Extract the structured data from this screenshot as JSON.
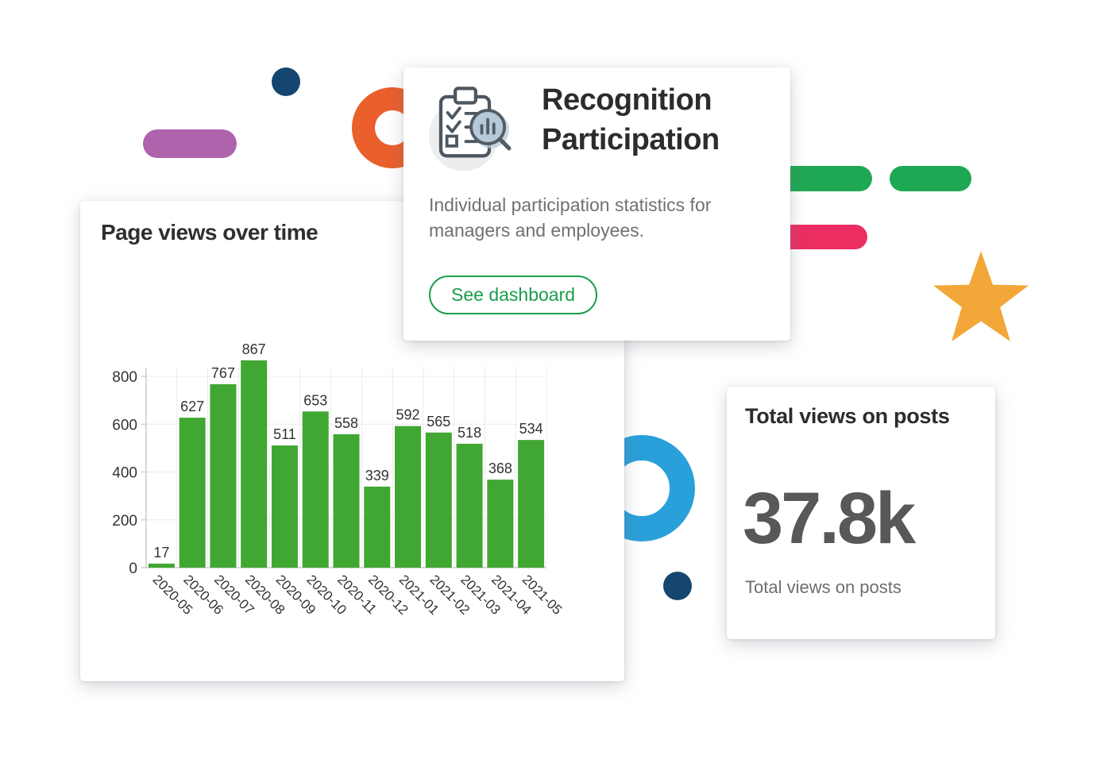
{
  "page": {
    "background": "#ffffff"
  },
  "chart_card": {
    "title": "Page views over time"
  },
  "chart_data": {
    "type": "bar",
    "title": "Page views over time",
    "categories": [
      "2020-05",
      "2020-06",
      "2020-07",
      "2020-08",
      "2020-09",
      "2020-10",
      "2020-11",
      "2020-12",
      "2021-01",
      "2021-02",
      "2021-03",
      "2021-04",
      "2021-05"
    ],
    "values": [
      17,
      627,
      767,
      867,
      511,
      653,
      558,
      339,
      592,
      565,
      518,
      368,
      534
    ],
    "xlabel": "",
    "ylabel": "",
    "ylim": [
      0,
      900
    ],
    "yticks": [
      0,
      200,
      400,
      600,
      800
    ],
    "x_tick_rotation": 45,
    "grid": true,
    "value_labels": true,
    "legend": "none",
    "bar_color": "#41A733",
    "grid_color": "#ececec",
    "axis_color": "#cccccc",
    "text_color": "#333333"
  },
  "recognition_card": {
    "icon": "clipboard-checklist-magnifier-chart-icon",
    "title_lines": [
      "Recognition",
      "Participation"
    ],
    "description": "Individual participation statistics for managers and employees.",
    "button_label": "See dashboard",
    "button_color": "#1A9C4B"
  },
  "total_views_card": {
    "title": "Total views on posts",
    "metric_value": "37.8k",
    "metric_label": "Total views on posts"
  },
  "decorations": {
    "purple_pill": {
      "color": "#AE63AC"
    },
    "navy_dot_top": {
      "color": "#15466F"
    },
    "orange_ring": {
      "color": "#EA5F2B"
    },
    "green_pill_1": {
      "color": "#1FA853"
    },
    "green_pill_2": {
      "color": "#1FA853"
    },
    "pink_pill": {
      "color": "#EC2D62"
    },
    "yellow_star": {
      "color": "#F3A738"
    },
    "blue_ring": {
      "color": "#2AA0DA"
    },
    "navy_dot_bottom": {
      "color": "#15466F"
    }
  }
}
